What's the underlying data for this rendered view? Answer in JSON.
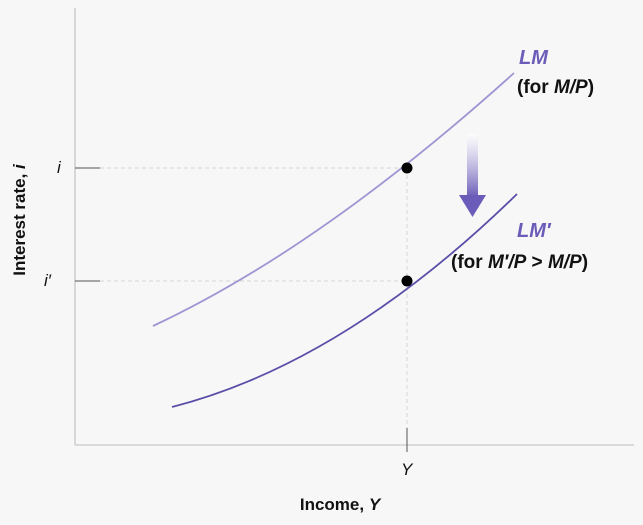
{
  "axes": {
    "y_label_text": "Interest rate, ",
    "y_label_var": "i",
    "x_label_text": "Income, ",
    "x_label_var": "Y",
    "y_tick_i": "i",
    "y_tick_i_prime": "i′",
    "x_tick_Y": "Y"
  },
  "curves": {
    "lm": {
      "name": "LM",
      "note": "(for M/P)",
      "color": "#9f95d3"
    },
    "lm_prime": {
      "name": "LM′",
      "note": "(for M′/P > M/P)",
      "color": "#5a4fa8"
    }
  },
  "colors": {
    "label_purple": "#6a5cb8",
    "arrow": "#6a5cb8",
    "axis": "#c8c8c8",
    "guide": "#d4d4d4",
    "point": "#000000"
  }
}
